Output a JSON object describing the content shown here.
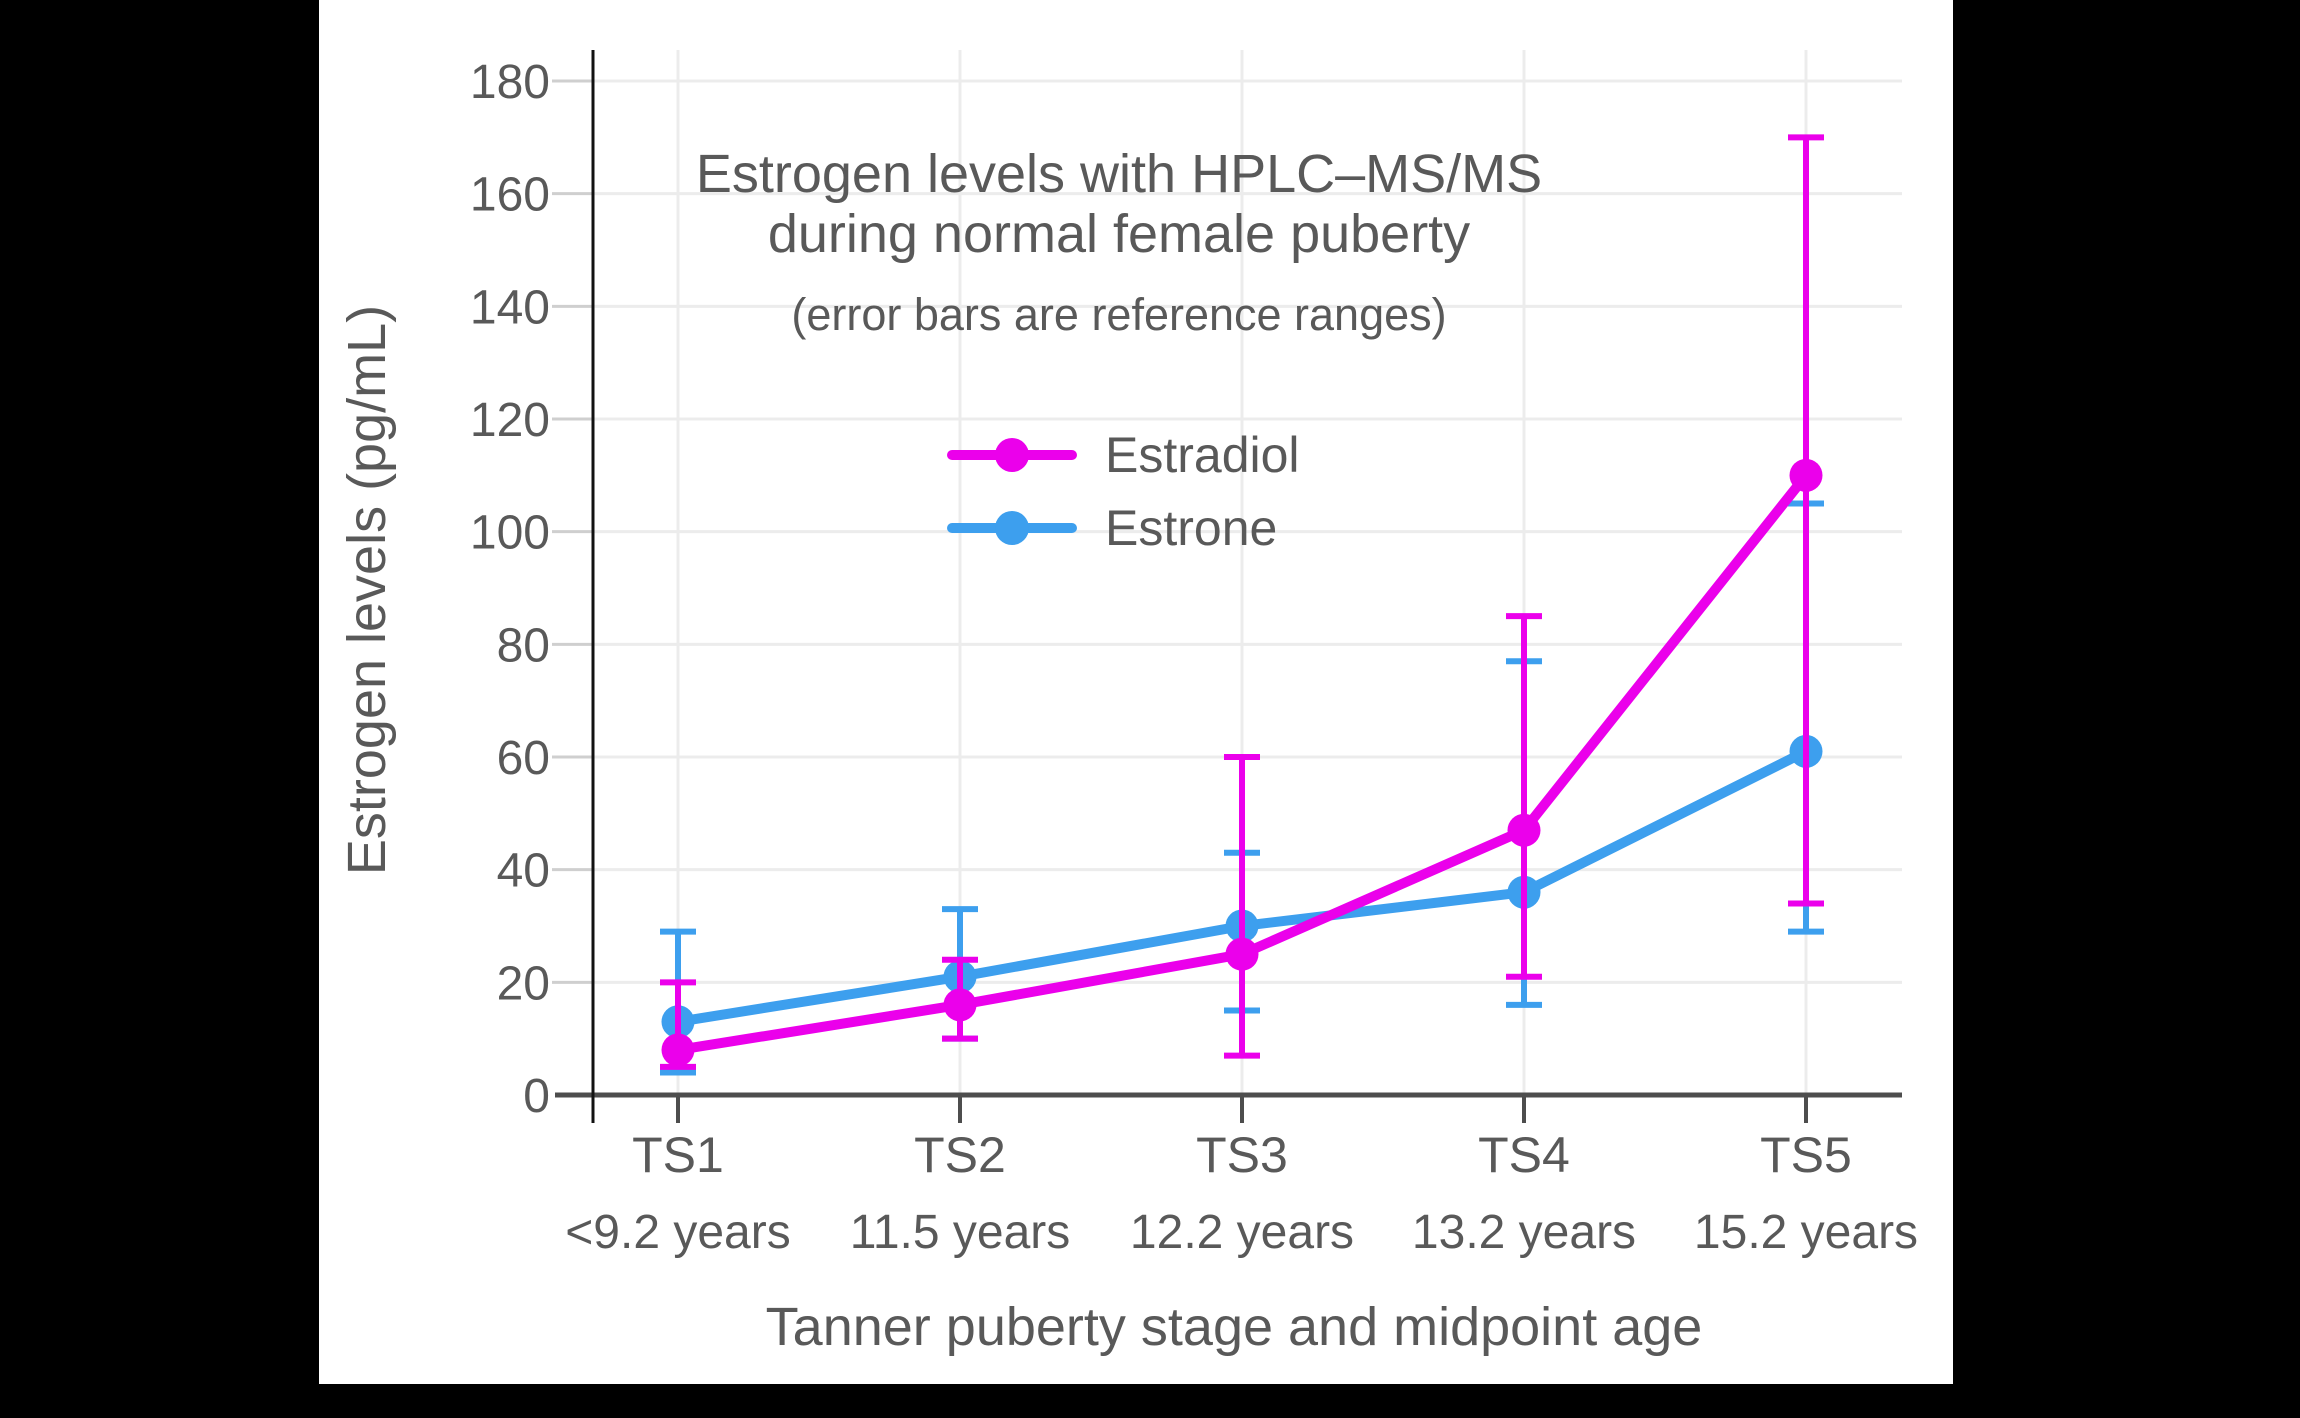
{
  "frame": {
    "background_color": "#000000",
    "card_background_color": "#ffffff"
  },
  "chart_data": {
    "type": "line",
    "title": "Estrogen levels with HPLC–MS/MS",
    "title_line2": "during normal female puberty",
    "subtitle": "(error bars are reference ranges)",
    "xlabel": "Tanner puberty stage and midpoint age",
    "ylabel": "Estrogen levels (pg/mL)",
    "categories": [
      "TS1",
      "TS2",
      "TS3",
      "TS4",
      "TS5"
    ],
    "category_sublabels": [
      "<9.2 years",
      "11.5 years",
      "12.2 years",
      "13.2 years",
      "15.2 years"
    ],
    "y_ticks": [
      0,
      20,
      40,
      60,
      80,
      100,
      120,
      140,
      160,
      180
    ],
    "ylim": [
      0,
      190
    ],
    "grid": true,
    "legend_position": "inside-upper-left",
    "error_bar_meaning": "reference ranges",
    "series": [
      {
        "name": "Estradiol",
        "color": "#EB00EB",
        "values": [
          8,
          16,
          25,
          47,
          110
        ],
        "error_low": [
          5,
          10,
          7,
          21,
          34
        ],
        "error_high": [
          20,
          24,
          60,
          85,
          170
        ]
      },
      {
        "name": "Estrone",
        "color": "#3D9FEE",
        "values": [
          13,
          21,
          30,
          36,
          61
        ],
        "error_low": [
          4,
          10,
          15,
          16,
          29
        ],
        "error_high": [
          29,
          33,
          43,
          77,
          105
        ]
      }
    ]
  },
  "style": {
    "text_color": "#595959",
    "gridline_color": "#ECECEC",
    "axis_line_color": "#4D4D4D",
    "spine_color": "#111111",
    "minor_tick_color": "#CFCFCF"
  }
}
